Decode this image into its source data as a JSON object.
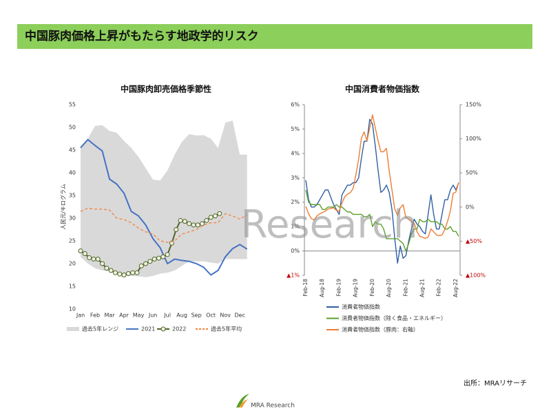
{
  "header": {
    "title": "中国豚肉価格上昇がもたらす地政学的リスク"
  },
  "watermark": "Research",
  "source": "出所：MRAリサーチ",
  "logo": "MRA Research",
  "chart_data": [
    {
      "type": "line",
      "title": "中国豚肉卸売価格季節性",
      "y_label": "人民元/キログラム",
      "x": [
        0,
        0.5,
        1,
        1.5,
        2,
        2.5,
        3,
        3.5,
        4,
        4.5,
        5,
        5.5,
        6,
        6.5,
        7,
        7.5,
        8,
        8.5,
        9,
        9.5,
        10,
        10.5,
        11,
        11.5
      ],
      "xlim": [
        0,
        11.8
      ],
      "xticks": [
        {
          "value": 0,
          "label": "Jan"
        },
        {
          "value": 1,
          "label": "Feb"
        },
        {
          "value": 2,
          "label": "Mar"
        },
        {
          "value": 3,
          "label": "Apr"
        },
        {
          "value": 4,
          "label": "May"
        },
        {
          "value": 5,
          "label": "Jun"
        },
        {
          "value": 6,
          "label": "Jul"
        },
        {
          "value": 7,
          "label": "Aug"
        },
        {
          "value": 8,
          "label": "Sep"
        },
        {
          "value": 9,
          "label": "Oct"
        },
        {
          "value": 10,
          "label": "Nov"
        },
        {
          "value": 11,
          "label": "Dec"
        }
      ],
      "ylim": [
        10,
        55
      ],
      "yticks": [
        10,
        15,
        20,
        25,
        30,
        35,
        40,
        45,
        50,
        55
      ],
      "legend": "bottom",
      "series": [
        {
          "name": "過去5年レンジ",
          "type": "range",
          "color": "#d9d9d9",
          "high": [
            45.5,
            47.5,
            50.3,
            50.5,
            49.2,
            48.8,
            47,
            45.5,
            43.5,
            41,
            38.5,
            38.3,
            40.5,
            44,
            46.8,
            48.5,
            48.2,
            48.3,
            47.5,
            45.5,
            51,
            51.5,
            44,
            44
          ],
          "low": [
            21.5,
            20,
            19,
            18.5,
            18.3,
            17.8,
            17.5,
            17.3,
            17.2,
            17,
            17.3,
            17.8,
            18,
            18.5,
            19.5,
            20.5,
            20.5,
            20.5,
            20.2,
            20,
            21,
            21,
            21,
            21
          ]
        },
        {
          "name": "2021",
          "color": "#4472c4",
          "values": [
            45.5,
            47.3,
            46,
            44.8,
            38.6,
            37.5,
            35.5,
            31.5,
            30.5,
            28.5,
            25.5,
            23.5,
            20,
            21,
            20.7,
            20.5,
            20,
            19.2,
            17.5,
            18.5,
            21.5,
            23.3,
            24.2,
            23.2
          ]
        },
        {
          "name": "2022",
          "color": "#4f6228",
          "marker": "circle",
          "marker_fill": "#eef3e2",
          "x": [
            0,
            0.3,
            0.6,
            0.9,
            1.2,
            1.5,
            1.8,
            2.1,
            2.4,
            2.7,
            3,
            3.3,
            3.6,
            3.9,
            4.2,
            4.5,
            4.8,
            5.1,
            5.4,
            5.7,
            6,
            6.3,
            6.6,
            6.9,
            7.2,
            7.5,
            7.8,
            8.1,
            8.4,
            8.7,
            9,
            9.3,
            9.6
          ],
          "values": [
            22.8,
            22.2,
            21.3,
            21,
            21,
            20,
            19,
            18.5,
            18,
            17.7,
            17.5,
            17.8,
            18,
            18,
            19.5,
            20,
            20.5,
            21,
            21.2,
            21.5,
            22,
            24.5,
            27.5,
            29.5,
            29.3,
            28.8,
            28.5,
            28.5,
            28.8,
            29.5,
            30.2,
            30.5,
            31
          ]
        },
        {
          "name": "過去5年平均",
          "color": "#f4813b",
          "dash": true,
          "values": [
            31.5,
            32.2,
            32,
            32,
            31.8,
            30,
            29.7,
            29,
            27.8,
            27,
            26.5,
            25,
            24.7,
            25,
            26.5,
            27,
            27.5,
            28.5,
            29,
            29,
            31,
            30.5,
            29.8,
            30.7
          ]
        }
      ]
    },
    {
      "type": "line",
      "title": "中国消費者物価指数",
      "axis_lines": true,
      "negative_label_color": "#c00000",
      "categories": [
        "Feb-18",
        null,
        null,
        null,
        null,
        null,
        "Aug-18",
        null,
        null,
        null,
        null,
        null,
        "Feb-19",
        null,
        null,
        null,
        null,
        null,
        "Aug-19",
        null,
        null,
        null,
        null,
        null,
        "Feb-20",
        null,
        null,
        null,
        null,
        null,
        "Aug-20",
        null,
        null,
        null,
        null,
        null,
        "Feb-21",
        null,
        null,
        null,
        null,
        null,
        "Aug-21",
        null,
        null,
        null,
        null,
        null,
        "Feb-22",
        null,
        null,
        null,
        null,
        null,
        "Aug-22",
        null
      ],
      "ylim": [
        -1,
        6
      ],
      "yticks": [
        {
          "value": -1,
          "label": "▲1%"
        },
        {
          "value": 0,
          "label": "0%"
        },
        {
          "value": 1,
          "label": "1%"
        },
        {
          "value": 2,
          "label": "2%"
        },
        {
          "value": 3,
          "label": "3%"
        },
        {
          "value": 4,
          "label": "4%"
        },
        {
          "value": 5,
          "label": "5%"
        },
        {
          "value": 6,
          "label": "6%"
        }
      ],
      "y2lim": [
        -100,
        150
      ],
      "y2ticks": [
        {
          "value": -100,
          "label": "▲100%"
        },
        {
          "value": -50,
          "label": "▲50%"
        },
        {
          "value": 0,
          "label": "0%"
        },
        {
          "value": 50,
          "label": "50%"
        },
        {
          "value": 100,
          "label": "100%"
        },
        {
          "value": 150,
          "label": "150%"
        }
      ],
      "legend": "bottom",
      "series": [
        {
          "name": "消費者物価指数",
          "color": "#2e5fa3",
          "values": [
            2.9,
            2.1,
            1.8,
            1.8,
            1.9,
            2.1,
            2.3,
            2.5,
            2.5,
            2.2,
            1.9,
            1.7,
            1.5,
            2.3,
            2.5,
            2.7,
            2.7,
            2.8,
            2.8,
            3.0,
            3.8,
            4.5,
            4.5,
            5.4,
            5.2,
            4.3,
            3.3,
            2.4,
            2.5,
            2.7,
            2.4,
            1.7,
            0.5,
            -0.5,
            0.2,
            -0.3,
            -0.2,
            0.4,
            0.9,
            1.3,
            1.1,
            1.0,
            0.8,
            0.7,
            1.5,
            2.3,
            1.5,
            0.9,
            0.9,
            1.5,
            2.1,
            2.1,
            2.5,
            2.7,
            2.5,
            2.8
          ]
        },
        {
          "name": "消費者物価指数（除く食品・エネルギー）",
          "color": "#5aa02c",
          "values": [
            2.5,
            2.0,
            1.9,
            1.9,
            1.9,
            1.9,
            1.7,
            1.7,
            1.8,
            1.8,
            1.8,
            1.9,
            1.8,
            1.8,
            1.7,
            1.6,
            1.6,
            1.5,
            1.5,
            1.5,
            1.5,
            1.4,
            1.4,
            1.5,
            1.0,
            1.2,
            1.1,
            1.1,
            0.9,
            0.5,
            0.5,
            0.5,
            0.5,
            0.5,
            0.4,
            0.3,
            0,
            0.3,
            0.7,
            0.9,
            0.9,
            1.3,
            1.2,
            1.2,
            1.3,
            1.2,
            1.2,
            1.2,
            1.1,
            1.1,
            0.9,
            0.9,
            1.0,
            0.8,
            0.8,
            0.6
          ]
        },
        {
          "name": "消費者物価指数（豚肉：右軸）",
          "color": "#ed7d31",
          "axis": "y2",
          "values": [
            1,
            -10,
            -17,
            -19,
            -13,
            -10,
            -8,
            -6,
            -3,
            -2,
            -1,
            -5,
            -6,
            6,
            15,
            19,
            21,
            27,
            47,
            70,
            101,
            110,
            97,
            116,
            135,
            116,
            97,
            81,
            81,
            86,
            53,
            25,
            -3,
            -12,
            -1,
            3.5,
            -15,
            -18,
            -21,
            -24,
            -36,
            -43,
            -44,
            -46,
            -44,
            -32,
            -36,
            -41,
            -42,
            -41,
            -33,
            -21,
            -6,
            20,
            22,
            36
          ]
        }
      ]
    }
  ]
}
